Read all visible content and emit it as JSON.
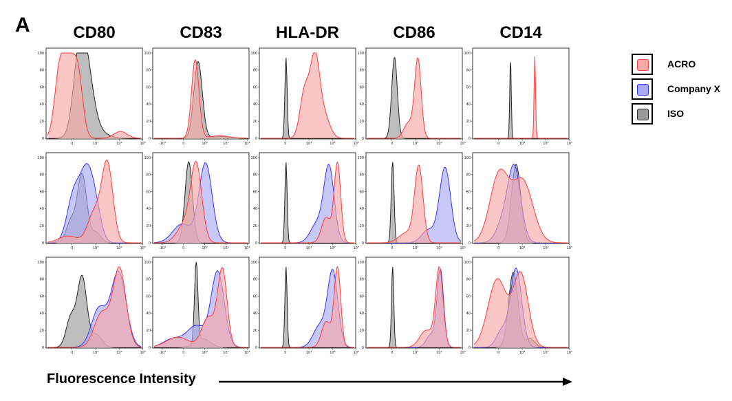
{
  "panel_label": "A",
  "x_axis_label": "Fluorescence Intensity",
  "legend": [
    {
      "name": "ACRO",
      "color": "#ff3b3b",
      "fill": "#f7a8a8"
    },
    {
      "name": "Company X",
      "color": "#3333ff",
      "fill": "#a9a9f5"
    },
    {
      "name": "ISO",
      "color": "#222222",
      "fill": "#9a9a9a"
    }
  ],
  "chart_data": {
    "type": "area",
    "columns": [
      "CD80",
      "CD83",
      "HLA-DR",
      "CD86",
      "CD14"
    ],
    "y_ticks": [
      "0",
      "20",
      "40",
      "60",
      "80",
      "100"
    ],
    "ylim": [
      0,
      100
    ],
    "x_scale": "biexponential",
    "rows": [
      [
        {
          "x_ticks": [
            "0",
            "10³",
            "10⁴",
            "10⁵"
          ],
          "series": [
            {
              "name": "ACRO",
              "peaks": [
                [
                  0.22,
                  90,
                  0.07
                ],
                [
                  0.12,
                  55,
                  0.05
                ],
                [
                  0.33,
                  60,
                  0.05
                ],
                [
                  0.78,
                  8,
                  0.07
                ]
              ]
            },
            {
              "name": "ISO",
              "peaks": [
                [
                  0.4,
                  92,
                  0.08
                ],
                [
                  0.33,
                  50,
                  0.06
                ],
                [
                  0.55,
                  6,
                  0.1
                ]
              ]
            }
          ]
        },
        {
          "x_ticks": [
            "-10³",
            "0",
            "10³",
            "10⁴",
            "10⁵"
          ],
          "series": [
            {
              "name": "ACRO",
              "peaks": [
                [
                  0.44,
                  92,
                  0.04
                ],
                [
                  0.7,
                  3,
                  0.1
                ]
              ]
            },
            {
              "name": "ISO",
              "peaks": [
                [
                  0.47,
                  90,
                  0.045
                ],
                [
                  0.72,
                  2,
                  0.1
                ]
              ]
            }
          ]
        },
        {
          "x_ticks": [
            "0",
            "10³",
            "10⁴",
            "10⁵"
          ],
          "series": [
            {
              "name": "ACRO",
              "peaks": [
                [
                  0.58,
                  92,
                  0.05
                ],
                [
                  0.47,
                  55,
                  0.05
                ],
                [
                  0.68,
                  25,
                  0.06
                ]
              ]
            },
            {
              "name": "ISO",
              "peaks": [
                [
                  0.27,
                  95,
                  0.012
                ]
              ]
            }
          ]
        },
        {
          "x_ticks": [
            "0",
            "10³",
            "10⁴",
            "10⁵"
          ],
          "series": [
            {
              "name": "ACRO",
              "peaks": [
                [
                  0.54,
                  92,
                  0.035
                ],
                [
                  0.44,
                  18,
                  0.05
                ]
              ]
            },
            {
              "name": "ISO",
              "peaks": [
                [
                  0.29,
                  95,
                  0.03
                ]
              ]
            }
          ]
        },
        {
          "x_ticks": [
            "0",
            "10³",
            "10⁴",
            "10⁵"
          ],
          "series": [
            {
              "name": "ACRO",
              "peaks": [
                [
                  0.65,
                  96,
                  0.008
                ]
              ]
            },
            {
              "name": "ISO",
              "peaks": [
                [
                  0.39,
                  95,
                  0.008
                ]
              ]
            }
          ]
        }
      ],
      [
        {
          "x_ticks": [
            "0",
            "10³",
            "10⁴",
            "10⁵"
          ],
          "series": [
            {
              "name": "ACRO",
              "peaks": [
                [
                  0.64,
                  92,
                  0.06
                ],
                [
                  0.5,
                  35,
                  0.07
                ],
                [
                  0.22,
                  8,
                  0.1
                ]
              ]
            },
            {
              "name": "Company X",
              "peaks": [
                [
                  0.42,
                  78,
                  0.07
                ],
                [
                  0.28,
                  55,
                  0.07
                ],
                [
                  0.52,
                  30,
                  0.06
                ]
              ]
            },
            {
              "name": "ISO",
              "peaks": [
                [
                  0.37,
                  80,
                  0.05
                ],
                [
                  0.25,
                  25,
                  0.05
                ],
                [
                  0.52,
                  12,
                  0.05
                ]
              ]
            }
          ]
        },
        {
          "x_ticks": [
            "-10³",
            "0",
            "10³",
            "10⁴",
            "10⁵"
          ],
          "series": [
            {
              "name": "ACRO",
              "peaks": [
                [
                  0.45,
                  90,
                  0.06
                ],
                [
                  0.32,
                  20,
                  0.08
                ]
              ]
            },
            {
              "name": "Company X",
              "peaks": [
                [
                  0.55,
                  93,
                  0.07
                ],
                [
                  0.3,
                  22,
                  0.1
                ]
              ]
            },
            {
              "name": "ISO",
              "peaks": [
                [
                  0.37,
                  95,
                  0.04
                ]
              ]
            }
          ]
        },
        {
          "x_ticks": [
            "0",
            "10³",
            "10⁴",
            "10⁵"
          ],
          "series": [
            {
              "name": "ACRO",
              "peaks": [
                [
                  0.82,
                  93,
                  0.035
                ],
                [
                  0.7,
                  30,
                  0.05
                ]
              ]
            },
            {
              "name": "Company X",
              "peaks": [
                [
                  0.73,
                  88,
                  0.055
                ],
                [
                  0.6,
                  22,
                  0.07
                ]
              ]
            },
            {
              "name": "ISO",
              "peaks": [
                [
                  0.27,
                  95,
                  0.012
                ]
              ]
            }
          ]
        },
        {
          "x_ticks": [
            "0",
            "10³",
            "10⁴",
            "10⁵"
          ],
          "series": [
            {
              "name": "ACRO",
              "peaks": [
                [
                  0.55,
                  88,
                  0.045
                ],
                [
                  0.42,
                  12,
                  0.08
                ]
              ]
            },
            {
              "name": "Company X",
              "peaks": [
                [
                  0.83,
                  88,
                  0.06
                ],
                [
                  0.65,
                  15,
                  0.07
                ]
              ]
            },
            {
              "name": "ISO",
              "peaks": [
                [
                  0.27,
                  95,
                  0.015
                ]
              ]
            }
          ]
        },
        {
          "x_ticks": [
            "0",
            "10³",
            "10⁴",
            "10⁵"
          ],
          "series": [
            {
              "name": "ACRO",
              "peaks": [
                [
                  0.27,
                  80,
                  0.1
                ],
                [
                  0.52,
                  72,
                  0.11
                ]
              ]
            },
            {
              "name": "Company X",
              "peaks": [
                [
                  0.43,
                  88,
                  0.07
                ],
                [
                  0.3,
                  20,
                  0.07
                ]
              ]
            },
            {
              "name": "ISO",
              "peaks": [
                [
                  0.45,
                  92,
                  0.05
                ]
              ]
            }
          ]
        }
      ],
      [
        {
          "x_ticks": [
            "0",
            "10³",
            "10⁴",
            "10⁵"
          ],
          "series": [
            {
              "name": "ACRO",
              "peaks": [
                [
                  0.77,
                  92,
                  0.07
                ],
                [
                  0.58,
                  40,
                  0.08
                ]
              ]
            },
            {
              "name": "Company X",
              "peaks": [
                [
                  0.76,
                  88,
                  0.08
                ],
                [
                  0.55,
                  45,
                  0.08
                ]
              ]
            },
            {
              "name": "ISO",
              "peaks": [
                [
                  0.37,
                  82,
                  0.05
                ],
                [
                  0.25,
                  35,
                  0.05
                ],
                [
                  0.52,
                  15,
                  0.06
                ]
              ]
            }
          ]
        },
        {
          "x_ticks": [
            "-10³",
            "0",
            "10³",
            "10⁴",
            "10⁵"
          ],
          "series": [
            {
              "name": "ACRO",
              "peaks": [
                [
                  0.73,
                  90,
                  0.05
                ],
                [
                  0.58,
                  35,
                  0.07
                ],
                [
                  0.25,
                  12,
                  0.12
                ]
              ]
            },
            {
              "name": "Company X",
              "peaks": [
                [
                  0.68,
                  88,
                  0.07
                ],
                [
                  0.45,
                  25,
                  0.1
                ],
                [
                  0.2,
                  10,
                  0.1
                ]
              ]
            },
            {
              "name": "ISO",
              "peaks": [
                [
                  0.45,
                  95,
                  0.018
                ],
                [
                  0.52,
                  10,
                  0.08
                ]
              ]
            }
          ]
        },
        {
          "x_ticks": [
            "0",
            "10³",
            "10⁴",
            "10⁵"
          ],
          "series": [
            {
              "name": "ACRO",
              "peaks": [
                [
                  0.82,
                  93,
                  0.035
                ],
                [
                  0.7,
                  30,
                  0.05
                ]
              ]
            },
            {
              "name": "Company X",
              "peaks": [
                [
                  0.77,
                  88,
                  0.055
                ],
                [
                  0.63,
                  25,
                  0.07
                ]
              ]
            },
            {
              "name": "ISO",
              "peaks": [
                [
                  0.27,
                  95,
                  0.012
                ]
              ]
            }
          ]
        },
        {
          "x_ticks": [
            "0",
            "10³",
            "10⁴",
            "10⁵"
          ],
          "series": [
            {
              "name": "ACRO",
              "peaks": [
                [
                  0.77,
                  92,
                  0.04
                ],
                [
                  0.63,
                  20,
                  0.07
                ]
              ]
            },
            {
              "name": "Company X",
              "peaks": [
                [
                  0.78,
                  90,
                  0.035
                ],
                [
                  0.68,
                  15,
                  0.05
                ]
              ]
            },
            {
              "name": "ISO",
              "peaks": [
                [
                  0.27,
                  95,
                  0.012
                ]
              ]
            }
          ]
        },
        {
          "x_ticks": [
            "0",
            "10³",
            "10⁴",
            "10⁵"
          ],
          "series": [
            {
              "name": "ACRO",
              "peaks": [
                [
                  0.25,
                  80,
                  0.1
                ],
                [
                  0.5,
                  85,
                  0.08
                ]
              ]
            },
            {
              "name": "Company X",
              "peaks": [
                [
                  0.45,
                  92,
                  0.06
                ],
                [
                  0.3,
                  20,
                  0.06
                ]
              ]
            },
            {
              "name": "ISO",
              "peaks": [
                [
                  0.42,
                  88,
                  0.05
                ],
                [
                  0.6,
                  10,
                  0.05
                ]
              ]
            }
          ]
        }
      ]
    ]
  }
}
